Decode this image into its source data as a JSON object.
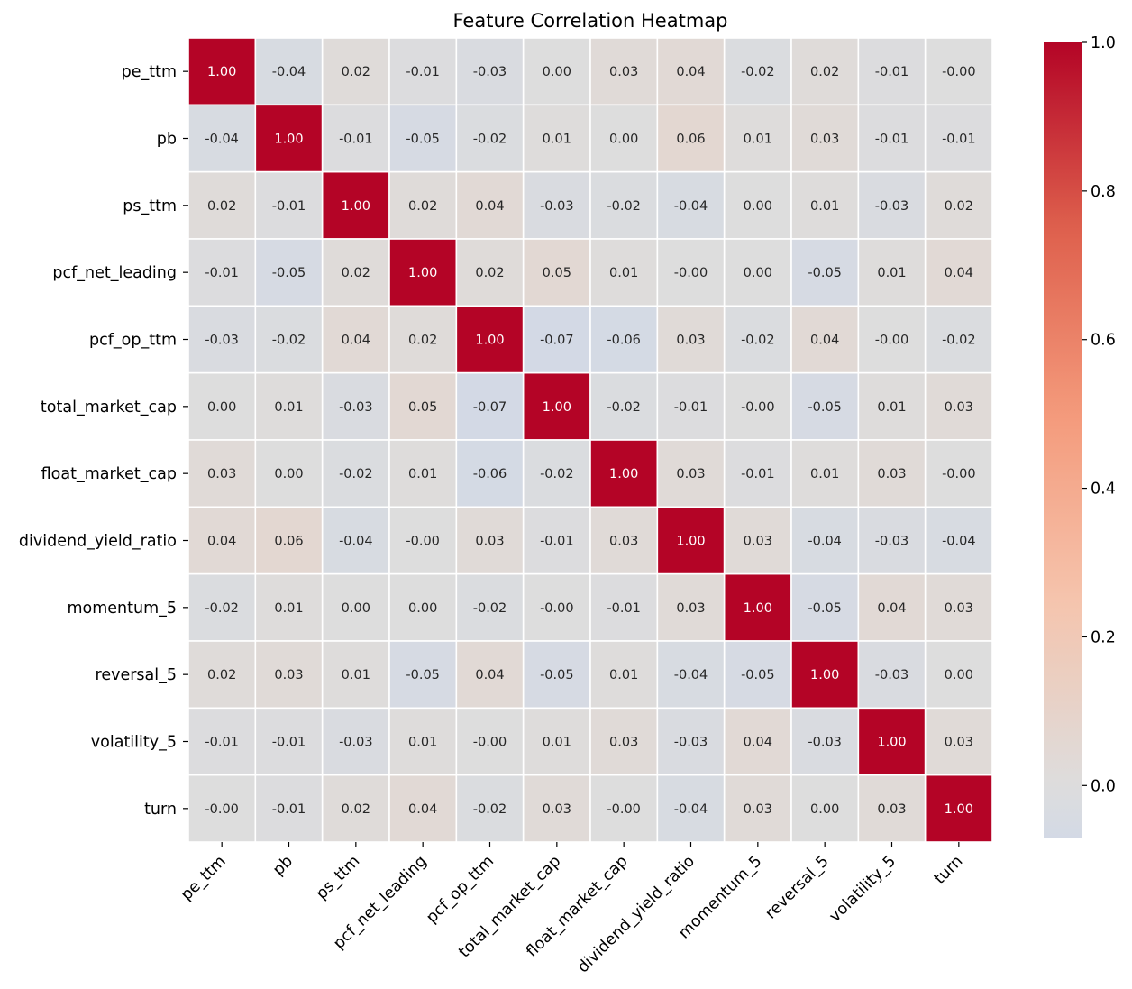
{
  "chart_data": {
    "type": "heatmap",
    "title": "Feature Correlation Heatmap",
    "labels": [
      "pe_ttm",
      "pb",
      "ps_ttm",
      "pcf_net_leading",
      "pcf_op_ttm",
      "total_market_cap",
      "float_market_cap",
      "dividend_yield_ratio",
      "momentum_5",
      "reversal_5",
      "volatility_5",
      "turn"
    ],
    "values": [
      [
        1.0,
        -0.04,
        0.02,
        -0.01,
        -0.03,
        0.0,
        0.03,
        0.04,
        -0.02,
        0.02,
        -0.01,
        -0.0
      ],
      [
        -0.04,
        1.0,
        -0.01,
        -0.05,
        -0.02,
        0.01,
        0.0,
        0.06,
        0.01,
        0.03,
        -0.01,
        -0.01
      ],
      [
        0.02,
        -0.01,
        1.0,
        0.02,
        0.04,
        -0.03,
        -0.02,
        -0.04,
        0.0,
        0.01,
        -0.03,
        0.02
      ],
      [
        -0.01,
        -0.05,
        0.02,
        1.0,
        0.02,
        0.05,
        0.01,
        -0.0,
        0.0,
        -0.05,
        0.01,
        0.04
      ],
      [
        -0.03,
        -0.02,
        0.04,
        0.02,
        1.0,
        -0.07,
        -0.06,
        0.03,
        -0.02,
        0.04,
        -0.0,
        -0.02
      ],
      [
        0.0,
        0.01,
        -0.03,
        0.05,
        -0.07,
        1.0,
        -0.02,
        -0.01,
        -0.0,
        -0.05,
        0.01,
        0.03
      ],
      [
        0.03,
        0.0,
        -0.02,
        0.01,
        -0.06,
        -0.02,
        1.0,
        0.03,
        -0.01,
        0.01,
        0.03,
        -0.0
      ],
      [
        0.04,
        0.06,
        -0.04,
        -0.0,
        0.03,
        -0.01,
        0.03,
        1.0,
        0.03,
        -0.04,
        -0.03,
        -0.04
      ],
      [
        -0.02,
        0.01,
        0.0,
        0.0,
        -0.02,
        -0.0,
        -0.01,
        0.03,
        1.0,
        -0.05,
        0.04,
        0.03
      ],
      [
        0.02,
        0.03,
        0.01,
        -0.05,
        0.04,
        -0.05,
        0.01,
        -0.04,
        -0.05,
        1.0,
        -0.03,
        0.0
      ],
      [
        -0.01,
        -0.01,
        -0.03,
        0.01,
        -0.0,
        0.01,
        0.03,
        -0.03,
        0.04,
        -0.03,
        1.0,
        0.03
      ],
      [
        -0.0,
        -0.01,
        0.02,
        0.04,
        -0.02,
        0.03,
        -0.0,
        -0.04,
        0.03,
        0.0,
        0.03,
        1.0
      ]
    ],
    "colormap": "coolwarm",
    "center": 0,
    "vmin": -0.07,
    "vmax": 1.0,
    "colorbar_ticks": [
      "0.0",
      "0.2",
      "0.4",
      "0.6",
      "0.8",
      "1.0"
    ],
    "annotate": true,
    "annotation_format": "0.00",
    "cell_border_color": "#ffffff",
    "legend_position": "right"
  }
}
